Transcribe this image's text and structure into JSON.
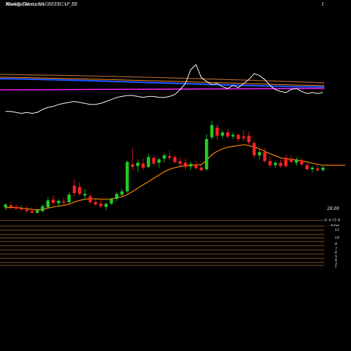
{
  "header": {
    "watermark": "MunafaSutra.com",
    "title": "Weekly Charts NAGREEKCAP_BE",
    "top_right": "1"
  },
  "colors": {
    "up": "#22cc22",
    "down": "#ff2222",
    "ema": "#ff8800",
    "rsi": "#ffffff",
    "blue_line": "#2255ff",
    "magenta_line": "#ee22ee",
    "brown_line": "#aa6633",
    "volume_line": "#b06a2a"
  },
  "price_axis": {
    "last_price_label": "28.00",
    "volume_label": "V: 0.72  X",
    "scale_label": "... B:Dyn"
  },
  "volume_axis": {
    "labels": [
      "12",
      "10",
      "8",
      "7",
      "6",
      "5",
      "4",
      "3",
      "1"
    ]
  },
  "chart_data": {
    "type": "candlestick",
    "title": "Weekly Charts NAGREEKCAP_BE",
    "price_range": [
      10,
      60
    ],
    "candles": [
      {
        "o": 18.5,
        "h": 19.5,
        "l": 17.8,
        "c": 19.2,
        "up": true
      },
      {
        "o": 19.0,
        "h": 19.8,
        "l": 18.0,
        "c": 18.6,
        "up": false
      },
      {
        "o": 18.6,
        "h": 19.2,
        "l": 17.9,
        "c": 18.2,
        "up": false
      },
      {
        "o": 18.3,
        "h": 19.0,
        "l": 17.4,
        "c": 18.0,
        "up": false
      },
      {
        "o": 18.0,
        "h": 18.8,
        "l": 17.2,
        "c": 17.6,
        "up": false
      },
      {
        "o": 17.6,
        "h": 18.5,
        "l": 17.0,
        "c": 17.2,
        "up": false
      },
      {
        "o": 17.2,
        "h": 18.0,
        "l": 16.8,
        "c": 17.8,
        "up": true
      },
      {
        "o": 17.6,
        "h": 19.2,
        "l": 17.2,
        "c": 18.8,
        "up": true
      },
      {
        "o": 18.5,
        "h": 21.0,
        "l": 18.2,
        "c": 20.2,
        "up": true
      },
      {
        "o": 20.4,
        "h": 21.4,
        "l": 19.0,
        "c": 19.6,
        "up": false
      },
      {
        "o": 19.5,
        "h": 20.4,
        "l": 18.6,
        "c": 20.1,
        "up": true
      },
      {
        "o": 20.0,
        "h": 21.0,
        "l": 19.0,
        "c": 19.7,
        "up": false
      },
      {
        "o": 19.8,
        "h": 22.2,
        "l": 19.4,
        "c": 21.6,
        "up": true
      },
      {
        "o": 22.0,
        "h": 25.4,
        "l": 21.0,
        "c": 23.8,
        "up": false
      },
      {
        "o": 23.5,
        "h": 24.6,
        "l": 21.2,
        "c": 21.8,
        "up": false
      },
      {
        "o": 21.8,
        "h": 23.0,
        "l": 20.4,
        "c": 21.4,
        "up": true
      },
      {
        "o": 21.2,
        "h": 21.8,
        "l": 19.4,
        "c": 19.8,
        "up": false
      },
      {
        "o": 19.8,
        "h": 20.6,
        "l": 18.8,
        "c": 19.2,
        "up": false
      },
      {
        "o": 19.4,
        "h": 20.2,
        "l": 18.2,
        "c": 18.8,
        "up": false
      },
      {
        "o": 18.6,
        "h": 19.6,
        "l": 17.8,
        "c": 19.4,
        "up": true
      },
      {
        "o": 19.4,
        "h": 20.8,
        "l": 19.0,
        "c": 20.6,
        "up": true
      },
      {
        "o": 20.6,
        "h": 22.4,
        "l": 20.0,
        "c": 21.8,
        "up": true
      },
      {
        "o": 21.6,
        "h": 23.0,
        "l": 21.0,
        "c": 22.4,
        "up": true
      },
      {
        "o": 22.4,
        "h": 30.0,
        "l": 22.0,
        "c": 29.6,
        "up": true
      },
      {
        "o": 29.0,
        "h": 33.0,
        "l": 27.6,
        "c": 28.4,
        "up": false
      },
      {
        "o": 28.6,
        "h": 30.2,
        "l": 27.2,
        "c": 29.4,
        "up": true
      },
      {
        "o": 29.2,
        "h": 30.4,
        "l": 27.6,
        "c": 28.2,
        "up": false
      },
      {
        "o": 28.4,
        "h": 31.6,
        "l": 28.0,
        "c": 30.8,
        "up": true
      },
      {
        "o": 30.6,
        "h": 31.2,
        "l": 28.6,
        "c": 29.2,
        "up": false
      },
      {
        "o": 29.4,
        "h": 30.6,
        "l": 28.2,
        "c": 30.2,
        "up": true
      },
      {
        "o": 30.4,
        "h": 31.8,
        "l": 29.4,
        "c": 31.2,
        "up": true
      },
      {
        "o": 31.0,
        "h": 32.4,
        "l": 30.2,
        "c": 30.6,
        "up": false
      },
      {
        "o": 30.8,
        "h": 31.2,
        "l": 29.2,
        "c": 29.6,
        "up": false
      },
      {
        "o": 29.8,
        "h": 30.6,
        "l": 28.6,
        "c": 29.2,
        "up": false
      },
      {
        "o": 29.4,
        "h": 30.4,
        "l": 27.8,
        "c": 28.4,
        "up": false
      },
      {
        "o": 28.5,
        "h": 29.6,
        "l": 27.6,
        "c": 29.1,
        "up": true
      },
      {
        "o": 29.0,
        "h": 29.8,
        "l": 27.8,
        "c": 28.1,
        "up": false
      },
      {
        "o": 28.2,
        "h": 29.0,
        "l": 27.2,
        "c": 27.6,
        "up": false
      },
      {
        "o": 27.8,
        "h": 36.4,
        "l": 27.4,
        "c": 35.2,
        "up": true
      },
      {
        "o": 35.6,
        "h": 39.6,
        "l": 35.0,
        "c": 38.6,
        "up": true
      },
      {
        "o": 38.0,
        "h": 38.8,
        "l": 35.0,
        "c": 36.0,
        "up": false
      },
      {
        "o": 36.0,
        "h": 37.4,
        "l": 35.4,
        "c": 36.8,
        "up": true
      },
      {
        "o": 36.8,
        "h": 37.6,
        "l": 35.4,
        "c": 35.8,
        "up": false
      },
      {
        "o": 35.8,
        "h": 36.8,
        "l": 35.2,
        "c": 36.2,
        "up": true
      },
      {
        "o": 36.2,
        "h": 36.6,
        "l": 34.6,
        "c": 35.2,
        "up": false
      },
      {
        "o": 35.4,
        "h": 37.4,
        "l": 34.6,
        "c": 35.8,
        "up": false
      },
      {
        "o": 36.0,
        "h": 37.0,
        "l": 34.0,
        "c": 34.4,
        "up": false
      },
      {
        "o": 34.2,
        "h": 34.8,
        "l": 30.4,
        "c": 31.2,
        "up": false
      },
      {
        "o": 31.2,
        "h": 32.6,
        "l": 30.2,
        "c": 32.0,
        "up": true
      },
      {
        "o": 32.0,
        "h": 33.0,
        "l": 29.4,
        "c": 29.8,
        "up": false
      },
      {
        "o": 29.8,
        "h": 30.8,
        "l": 28.2,
        "c": 28.8,
        "up": false
      },
      {
        "o": 28.8,
        "h": 29.8,
        "l": 28.0,
        "c": 29.4,
        "up": true
      },
      {
        "o": 29.4,
        "h": 30.0,
        "l": 28.2,
        "c": 28.6,
        "up": false
      },
      {
        "o": 28.6,
        "h": 31.4,
        "l": 28.2,
        "c": 30.6,
        "up": false
      },
      {
        "o": 30.4,
        "h": 31.2,
        "l": 29.4,
        "c": 29.6,
        "up": false
      },
      {
        "o": 29.4,
        "h": 30.8,
        "l": 28.6,
        "c": 30.2,
        "up": true
      },
      {
        "o": 30.0,
        "h": 30.6,
        "l": 28.6,
        "c": 29.0,
        "up": false
      },
      {
        "o": 28.8,
        "h": 29.4,
        "l": 27.6,
        "c": 27.8,
        "up": false
      },
      {
        "o": 27.8,
        "h": 28.6,
        "l": 27.0,
        "c": 28.2,
        "up": true
      },
      {
        "o": 28.0,
        "h": 28.8,
        "l": 27.2,
        "c": 27.6,
        "up": false
      },
      {
        "o": 27.6,
        "h": 28.6,
        "l": 27.2,
        "c": 28.2,
        "up": true
      }
    ],
    "ema": [
      18.4,
      18.5,
      18.45,
      18.35,
      18.2,
      18.0,
      17.9,
      18.0,
      18.3,
      18.6,
      18.8,
      19.0,
      19.3,
      19.8,
      20.2,
      20.5,
      20.6,
      20.6,
      20.5,
      20.5,
      20.6,
      20.8,
      21.1,
      21.6,
      22.4,
      23.2,
      24.0,
      24.8,
      25.6,
      26.4,
      27.2,
      27.8,
      28.2,
      28.5,
      28.7,
      28.8,
      28.9,
      28.9,
      30.0,
      31.4,
      32.2,
      32.8,
      33.2,
      33.4,
      33.6,
      33.8,
      33.6,
      33.2,
      32.8,
      32.2,
      31.6,
      31.1,
      30.6,
      30.4,
      30.2,
      30.1,
      29.9,
      29.6,
      29.3,
      29.0,
      28.8
    ],
    "rsi": [
      48,
      48,
      47,
      46,
      47,
      46,
      47,
      50,
      52,
      53,
      55,
      56,
      57,
      58,
      57,
      56,
      55,
      55,
      56,
      58,
      60,
      62,
      63,
      64,
      64,
      63,
      62,
      63,
      63,
      62,
      62,
      63,
      65,
      70,
      76,
      90,
      95,
      82,
      78,
      75,
      76,
      73,
      71,
      74,
      72,
      76,
      80,
      86,
      84,
      80,
      74,
      70,
      68,
      67,
      70,
      71,
      68,
      66,
      67,
      66,
      67
    ],
    "volume_levels": [
      12,
      10,
      8,
      7,
      6,
      5,
      4,
      3,
      1
    ]
  }
}
